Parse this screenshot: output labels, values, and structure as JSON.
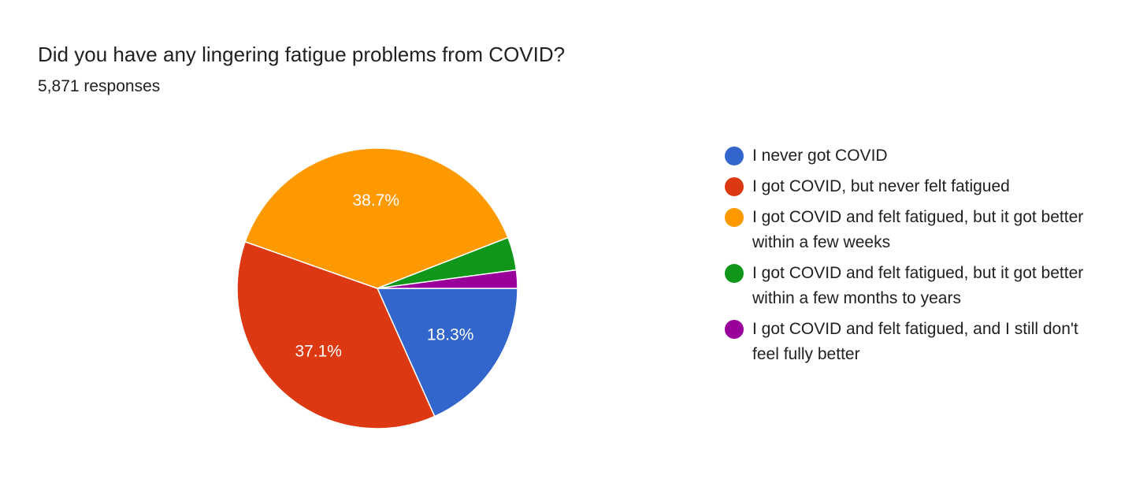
{
  "chart_data": {
    "type": "pie",
    "title": "Did you have any lingering fatigue problems from COVID?",
    "subtitle": "5,871 responses",
    "categories": [
      "I never got COVID",
      "I got COVID, but never felt fatigued",
      "I got COVID and felt fatigued, but it got better within a few weeks",
      "I got COVID and felt fatigued, but it got better within a few months to years",
      "I got COVID and felt fatigued, and I still don't feel fully better"
    ],
    "values": [
      18.3,
      37.1,
      38.7,
      3.8,
      2.1
    ],
    "value_labels": [
      "18.3%",
      "37.1%",
      "38.7%",
      null,
      null
    ],
    "colors": [
      "#3366cc",
      "#dc3912",
      "#ff9900",
      "#109618",
      "#990099"
    ],
    "legend": "right"
  }
}
